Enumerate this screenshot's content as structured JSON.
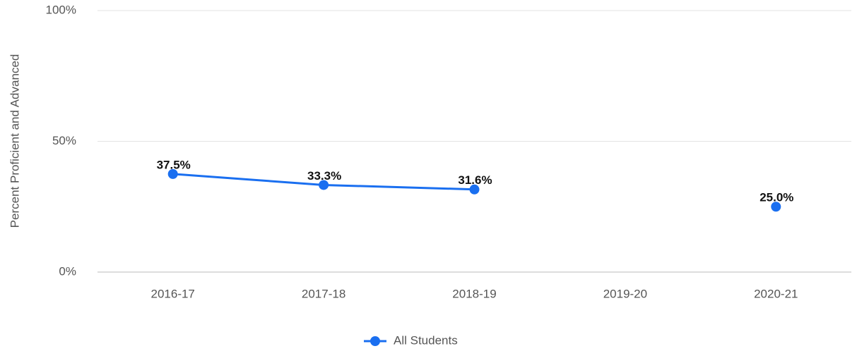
{
  "chart_data": {
    "type": "line",
    "y_label": "Percent Proficient and Advanced",
    "categories": [
      "2016-17",
      "2017-18",
      "2018-19",
      "2019-20",
      "2020-21"
    ],
    "series": [
      {
        "name": "All Students",
        "color": "#1a6ff0",
        "values": [
          37.5,
          33.3,
          31.6,
          null,
          25.0
        ],
        "value_labels": [
          "37.5%",
          "33.3%",
          "31.6%",
          null,
          "25.0%"
        ]
      }
    ],
    "ylim": [
      0,
      100
    ],
    "yticks": [
      {
        "value": 0,
        "label": "0%"
      },
      {
        "value": 50,
        "label": "50%"
      },
      {
        "value": 100,
        "label": "100%"
      }
    ],
    "grid": true,
    "legend": "bottom"
  }
}
